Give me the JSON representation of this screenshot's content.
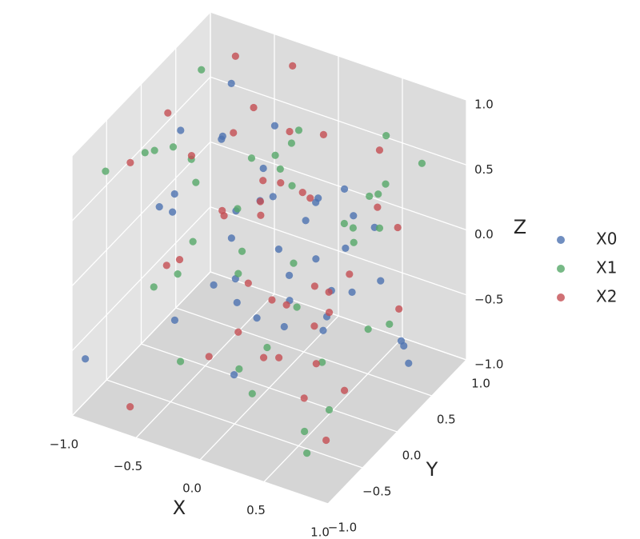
{
  "chart_data": {
    "type": "scatter3d",
    "xlabel": "X",
    "ylabel": "Y",
    "zlabel": "Z",
    "xlim": [
      -1,
      1
    ],
    "ylim": [
      -1,
      1
    ],
    "zlim": [
      -1,
      1
    ],
    "xticks": [
      {
        "value": -1,
        "label": "−1.0"
      },
      {
        "value": -0.5,
        "label": "−0.5"
      },
      {
        "value": 0,
        "label": "0.0"
      },
      {
        "value": 0.5,
        "label": "0.5"
      },
      {
        "value": 1,
        "label": "1.0"
      }
    ],
    "yticks": [
      {
        "value": -1,
        "label": "−1.0"
      },
      {
        "value": -0.5,
        "label": "−0.5"
      },
      {
        "value": 0,
        "label": "0.0"
      },
      {
        "value": 0.5,
        "label": "0.5"
      },
      {
        "value": 1,
        "label": "1.0"
      }
    ],
    "zticks": [
      {
        "value": -1,
        "label": "−1.0"
      },
      {
        "value": -0.5,
        "label": "−0.5"
      },
      {
        "value": 0,
        "label": "0.0"
      },
      {
        "value": 0.5,
        "label": "0.5"
      },
      {
        "value": 1,
        "label": "1.0"
      }
    ],
    "grid": true,
    "legend": "right",
    "series": [
      {
        "name": "X0",
        "color": "#4c72b0",
        "x": [
          -0.95,
          -0.62,
          0.12,
          0.55,
          -0.3,
          0.8,
          -0.1,
          0.35,
          -0.75,
          0.9,
          0.2,
          -0.45,
          0.65,
          -0.2,
          0.05,
          -0.85,
          0.45,
          -0.55,
          0.7,
          0.15,
          -0.35,
          0.95,
          -0.05,
          0.3,
          -0.65,
          0.5,
          -0.15,
          0.85,
          -0.9,
          0.25,
          0.6,
          -0.4,
          0.1,
          -0.7,
          0.75,
          -0.25,
          0.4,
          -0.8,
          0.0,
          0.55
        ],
        "y": [
          -0.9,
          0.6,
          -0.4,
          0.2,
          0.85,
          -0.7,
          0.1,
          0.55,
          -0.2,
          0.35,
          -0.85,
          0.7,
          -0.1,
          0.45,
          -0.6,
          0.9,
          0.0,
          -0.35,
          0.65,
          0.25,
          -0.75,
          0.15,
          0.8,
          -0.5,
          0.4,
          -0.25,
          0.95,
          -0.05,
          0.3,
          -0.95,
          0.5,
          0.05,
          -0.65,
          0.75,
          -0.3,
          0.6,
          -0.45,
          0.2,
          0.9,
          -0.8
        ],
        "z": [
          -0.6,
          0.8,
          -0.2,
          0.4,
          -0.9,
          0.1,
          0.6,
          -0.45,
          0.25,
          -0.7,
          0.9,
          -0.1,
          0.35,
          0.7,
          -0.55,
          0.15,
          -0.3,
          0.5,
          -0.8,
          0.2,
          0.65,
          -0.4,
          0.0,
          0.85,
          -0.65,
          0.3,
          -0.15,
          0.55,
          -0.95,
          0.45,
          -0.25,
          0.75,
          0.05,
          -0.5,
          0.95,
          -0.35,
          0.25,
          0.6,
          -0.75,
          0.1
        ]
      },
      {
        "name": "X1",
        "color": "#55a868",
        "x": [
          -0.8,
          0.3,
          0.7,
          -0.5,
          0.1,
          -0.95,
          0.6,
          -0.2,
          0.85,
          -0.35,
          0.45,
          -0.7,
          0.0,
          0.9,
          -0.15,
          0.55,
          -0.6,
          0.25,
          -0.9,
          0.75,
          -0.05,
          0.4,
          -0.45,
          0.15,
          0.8,
          -0.25,
          0.65,
          -0.85,
          0.35,
          -0.55,
          0.95,
          -0.1,
          0.5,
          -0.75,
          0.2,
          -0.4,
          0.7,
          -0.3,
          0.05,
          -0.65
        ],
        "y": [
          0.5,
          -0.8,
          0.3,
          -0.2,
          0.9,
          0.1,
          -0.6,
          0.7,
          -0.35,
          0.2,
          0.85,
          -0.5,
          0.4,
          -0.9,
          0.6,
          -0.15,
          0.05,
          0.75,
          -0.7,
          0.35,
          -0.3,
          0.95,
          -0.45,
          0.15,
          -0.05,
          0.55,
          -0.85,
          0.25,
          0.8,
          -0.65,
          0.45,
          -0.25,
          0.65,
          0.0,
          -0.4,
          0.9,
          -0.75,
          0.3,
          -0.55,
          0.1
        ],
        "z": [
          0.9,
          -0.5,
          0.3,
          0.7,
          -0.2,
          0.45,
          -0.8,
          0.1,
          0.6,
          -0.35,
          0.25,
          0.85,
          -0.6,
          0.0,
          0.5,
          -0.9,
          0.35,
          -0.1,
          0.75,
          -0.45,
          0.2,
          0.55,
          -0.7,
          0.95,
          -0.25,
          0.4,
          0.65,
          -0.55,
          0.15,
          -0.05,
          0.8,
          -0.75,
          0.3,
          0.6,
          -0.4,
          0.05,
          -0.85,
          0.5,
          0.7,
          -0.15
        ]
      },
      {
        "name": "X2",
        "color": "#c44e52",
        "x": [
          -0.9,
          0.4,
          -0.25,
          0.75,
          0.05,
          -0.6,
          0.95,
          -0.4,
          0.2,
          -0.75,
          0.55,
          -0.1,
          0.85,
          -0.5,
          0.3,
          -0.85,
          0.65,
          0.0,
          -0.3,
          0.45,
          -0.7,
          0.1,
          0.8,
          -0.15,
          0.5,
          -0.95,
          0.25,
          -0.45,
          0.7,
          -0.05,
          0.35,
          -0.65,
          0.9,
          -0.2,
          0.6,
          -0.8,
          0.15,
          -0.35,
          0.4,
          -0.55
        ],
        "y": [
          0.2,
          -0.6,
          0.8,
          -0.3,
          0.5,
          -0.9,
          0.1,
          0.65,
          -0.45,
          0.9,
          -0.15,
          0.35,
          -0.75,
          0.7,
          -0.05,
          0.45,
          -0.55,
          0.25,
          0.85,
          -0.35,
          0.0,
          0.6,
          -0.8,
          0.15,
          0.95,
          -0.25,
          0.4,
          -0.65,
          0.3,
          0.75,
          -0.95,
          0.55,
          -0.1,
          -0.5,
          0.05,
          0.8,
          -0.4,
          0.2,
          -0.7,
          0.5
        ],
        "z": [
          0.7,
          -0.3,
          0.95,
          -0.6,
          0.2,
          -0.85,
          0.5,
          0.1,
          -0.45,
          0.8,
          -0.15,
          0.35,
          -0.7,
          0.6,
          -0.95,
          0.25,
          0.0,
          -0.5,
          0.4,
          0.85,
          -0.25,
          0.65,
          -0.1,
          0.3,
          -0.75,
          0.55,
          -0.4,
          0.15,
          0.9,
          -0.65,
          0.45,
          -0.2,
          0.75,
          -0.55,
          0.05,
          -0.35,
          0.6,
          -0.8,
          0.2,
          0.5
        ]
      }
    ]
  }
}
